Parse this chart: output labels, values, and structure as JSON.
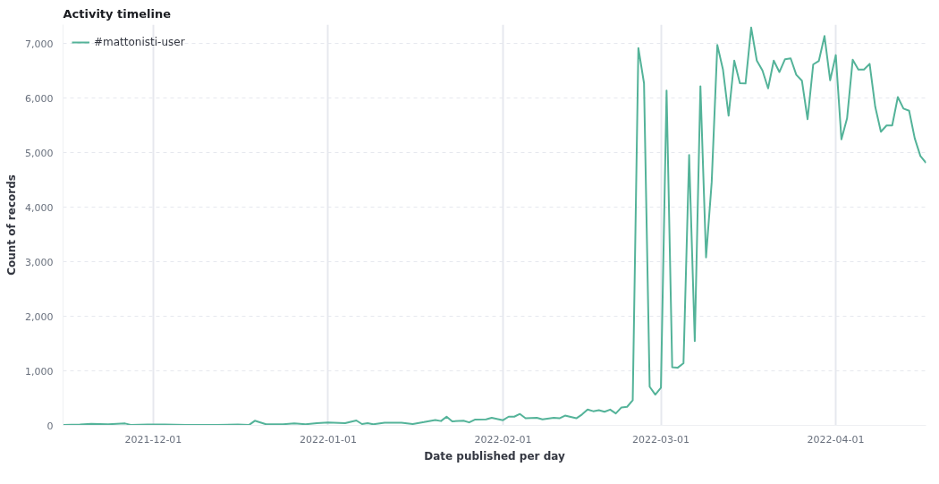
{
  "chart_data": {
    "type": "line",
    "title": "Activity timeline",
    "xlabel": "Date published per day",
    "ylabel": "Count of records",
    "xlim": [
      "2021-11-15",
      "2022-04-17"
    ],
    "xticks": [
      "2021-12-01",
      "2022-01-01",
      "2022-02-01",
      "2022-03-01",
      "2022-04-01"
    ],
    "ylim": [
      0,
      7350
    ],
    "yticks": [
      {
        "value": 0,
        "label": "0"
      },
      {
        "value": 1000,
        "label": "1,000"
      },
      {
        "value": 2000,
        "label": "2,000"
      },
      {
        "value": 3000,
        "label": "3,000"
      },
      {
        "value": 4000,
        "label": "4,000"
      },
      {
        "value": 5000,
        "label": "5,000"
      },
      {
        "value": 6000,
        "label": "6,000"
      },
      {
        "value": 7000,
        "label": "7,000"
      }
    ],
    "grid": true,
    "legend": "top left",
    "marker": "none",
    "line_style": "solid",
    "x": [
      "2021-11-15",
      "2021-11-18",
      "2021-11-20",
      "2021-11-23",
      "2021-11-26",
      "2021-11-27",
      "2021-11-30",
      "2021-12-03",
      "2021-12-07",
      "2021-12-12",
      "2021-12-16",
      "2021-12-18",
      "2021-12-19",
      "2021-12-21",
      "2021-12-24",
      "2021-12-26",
      "2021-12-28",
      "2021-12-30",
      "2022-01-01",
      "2022-01-04",
      "2022-01-06",
      "2022-01-07",
      "2022-01-08",
      "2022-01-09",
      "2022-01-11",
      "2022-01-14",
      "2022-01-16",
      "2022-01-18",
      "2022-01-20",
      "2022-01-21",
      "2022-01-22",
      "2022-01-23",
      "2022-01-25",
      "2022-01-26",
      "2022-01-27",
      "2022-01-29",
      "2022-01-30",
      "2022-02-01",
      "2022-02-02",
      "2022-02-03",
      "2022-02-04",
      "2022-02-05",
      "2022-02-07",
      "2022-02-08",
      "2022-02-10",
      "2022-02-11",
      "2022-02-12",
      "2022-02-14",
      "2022-02-15",
      "2022-02-16",
      "2022-02-17",
      "2022-02-18",
      "2022-02-19",
      "2022-02-20",
      "2022-02-21",
      "2022-02-22",
      "2022-02-23",
      "2022-02-24",
      "2022-02-25",
      "2022-02-26",
      "2022-02-27",
      "2022-02-28",
      "2022-03-01",
      "2022-03-02",
      "2022-03-03",
      "2022-03-04",
      "2022-03-05",
      "2022-03-06",
      "2022-03-07",
      "2022-03-08",
      "2022-03-09",
      "2022-03-10",
      "2022-03-11",
      "2022-03-12",
      "2022-03-13",
      "2022-03-14",
      "2022-03-15",
      "2022-03-16",
      "2022-03-17",
      "2022-03-18",
      "2022-03-19",
      "2022-03-20",
      "2022-03-21",
      "2022-03-22",
      "2022-03-23",
      "2022-03-24",
      "2022-03-25",
      "2022-03-26",
      "2022-03-27",
      "2022-03-28",
      "2022-03-29",
      "2022-03-30",
      "2022-03-31",
      "2022-04-01",
      "2022-04-02",
      "2022-04-03",
      "2022-04-04",
      "2022-04-05",
      "2022-04-06",
      "2022-04-07",
      "2022-04-08",
      "2022-04-09",
      "2022-04-10",
      "2022-04-11",
      "2022-04-12",
      "2022-04-13",
      "2022-04-14",
      "2022-04-15",
      "2022-04-16",
      "2022-04-17"
    ],
    "series": [
      {
        "name": "#mattonisti-user",
        "color": "#54b399",
        "values": [
          10,
          15,
          30,
          20,
          35,
          10,
          15,
          15,
          10,
          10,
          15,
          10,
          85,
          20,
          20,
          35,
          20,
          40,
          55,
          40,
          90,
          25,
          40,
          20,
          50,
          50,
          25,
          60,
          100,
          80,
          160,
          75,
          85,
          55,
          105,
          110,
          140,
          95,
          160,
          160,
          210,
          130,
          140,
          110,
          140,
          130,
          180,
          130,
          200,
          290,
          260,
          280,
          250,
          290,
          220,
          330,
          340,
          460,
          6920,
          6275,
          710,
          565,
          690,
          6140,
          1065,
          1060,
          1140,
          4960,
          1545,
          6220,
          3080,
          4460,
          6975,
          6525,
          5680,
          6690,
          6275,
          6270,
          7295,
          6690,
          6510,
          6180,
          6690,
          6480,
          6715,
          6730,
          6430,
          6320,
          5615,
          6620,
          6685,
          7140,
          6330,
          6790,
          5245,
          5630,
          6705,
          6525,
          6525,
          6630,
          5840,
          5385,
          5500,
          5500,
          6020,
          5810,
          5770,
          5265,
          4940,
          4815
        ]
      }
    ]
  }
}
